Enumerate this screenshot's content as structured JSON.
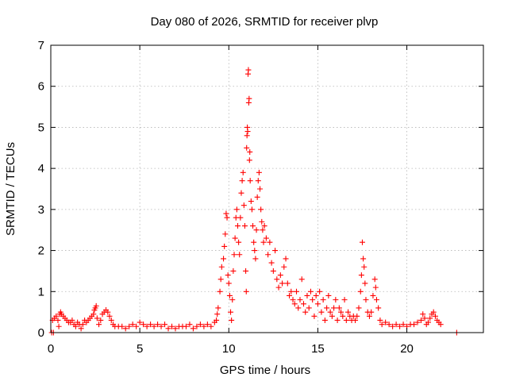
{
  "chart_data": {
    "type": "scatter",
    "title": "Day 080 of 2026, SRMTID for receiver plvp",
    "xlabel": "GPS time / hours",
    "ylabel": "SRMTID / TECUs",
    "xlim": [
      0,
      24.3
    ],
    "ylim": [
      0,
      7
    ],
    "xticks": [
      0,
      5,
      10,
      15,
      20
    ],
    "yticks": [
      0,
      1,
      2,
      3,
      4,
      5,
      6,
      7
    ],
    "grid": true,
    "marker": "+",
    "series": [
      {
        "name": "plvp",
        "color": "#ff0000",
        "points": [
          [
            0.05,
            0.0
          ],
          [
            0.1,
            0.3
          ],
          [
            0.15,
            0.0
          ],
          [
            0.2,
            0.35
          ],
          [
            0.3,
            0.4
          ],
          [
            0.4,
            0.3
          ],
          [
            0.45,
            0.15
          ],
          [
            0.5,
            0.45
          ],
          [
            0.55,
            0.5
          ],
          [
            0.6,
            0.45
          ],
          [
            0.7,
            0.4
          ],
          [
            0.8,
            0.35
          ],
          [
            0.9,
            0.3
          ],
          [
            1.0,
            0.25
          ],
          [
            1.1,
            0.25
          ],
          [
            1.2,
            0.3
          ],
          [
            1.3,
            0.2
          ],
          [
            1.4,
            0.15
          ],
          [
            1.5,
            0.25
          ],
          [
            1.6,
            0.2
          ],
          [
            1.7,
            0.1
          ],
          [
            1.8,
            0.2
          ],
          [
            1.9,
            0.3
          ],
          [
            2.0,
            0.25
          ],
          [
            2.1,
            0.3
          ],
          [
            2.2,
            0.35
          ],
          [
            2.3,
            0.4
          ],
          [
            2.4,
            0.45
          ],
          [
            2.45,
            0.55
          ],
          [
            2.5,
            0.6
          ],
          [
            2.55,
            0.65
          ],
          [
            2.6,
            0.35
          ],
          [
            2.7,
            0.2
          ],
          [
            2.8,
            0.3
          ],
          [
            2.9,
            0.45
          ],
          [
            3.0,
            0.5
          ],
          [
            3.1,
            0.55
          ],
          [
            3.2,
            0.5
          ],
          [
            3.3,
            0.4
          ],
          [
            3.4,
            0.3
          ],
          [
            3.5,
            0.2
          ],
          [
            3.6,
            0.15
          ],
          [
            3.8,
            0.15
          ],
          [
            4.0,
            0.15
          ],
          [
            4.2,
            0.1
          ],
          [
            4.4,
            0.15
          ],
          [
            4.6,
            0.2
          ],
          [
            4.8,
            0.15
          ],
          [
            5.0,
            0.25
          ],
          [
            5.2,
            0.2
          ],
          [
            5.4,
            0.15
          ],
          [
            5.6,
            0.2
          ],
          [
            5.8,
            0.15
          ],
          [
            6.0,
            0.2
          ],
          [
            6.2,
            0.15
          ],
          [
            6.4,
            0.2
          ],
          [
            6.6,
            0.1
          ],
          [
            6.8,
            0.15
          ],
          [
            7.0,
            0.1
          ],
          [
            7.2,
            0.15
          ],
          [
            7.4,
            0.15
          ],
          [
            7.6,
            0.15
          ],
          [
            7.8,
            0.2
          ],
          [
            8.0,
            0.1
          ],
          [
            8.2,
            0.15
          ],
          [
            8.4,
            0.2
          ],
          [
            8.6,
            0.15
          ],
          [
            8.8,
            0.2
          ],
          [
            9.0,
            0.15
          ],
          [
            9.2,
            0.25
          ],
          [
            9.3,
            0.3
          ],
          [
            9.35,
            0.45
          ],
          [
            9.4,
            0.6
          ],
          [
            9.5,
            1.0
          ],
          [
            9.55,
            1.3
          ],
          [
            9.6,
            1.6
          ],
          [
            9.7,
            1.8
          ],
          [
            9.75,
            2.1
          ],
          [
            9.8,
            2.4
          ],
          [
            9.85,
            2.9
          ],
          [
            9.9,
            2.8
          ],
          [
            9.95,
            1.4
          ],
          [
            10.0,
            1.2
          ],
          [
            10.05,
            0.9
          ],
          [
            10.1,
            0.5
          ],
          [
            10.15,
            0.3
          ],
          [
            10.2,
            0.8
          ],
          [
            10.25,
            1.5
          ],
          [
            10.3,
            1.9
          ],
          [
            10.35,
            2.3
          ],
          [
            10.4,
            2.8
          ],
          [
            10.45,
            3.0
          ],
          [
            10.5,
            2.6
          ],
          [
            10.55,
            2.2
          ],
          [
            10.6,
            1.9
          ],
          [
            10.65,
            2.8
          ],
          [
            10.7,
            3.4
          ],
          [
            10.75,
            3.7
          ],
          [
            10.8,
            3.9
          ],
          [
            10.85,
            3.1
          ],
          [
            10.9,
            2.6
          ],
          [
            10.95,
            1.5
          ],
          [
            10.98,
            1.0
          ],
          [
            11.0,
            4.5
          ],
          [
            11.02,
            4.8
          ],
          [
            11.04,
            5.0
          ],
          [
            11.06,
            4.9
          ],
          [
            11.08,
            6.3
          ],
          [
            11.1,
            6.4
          ],
          [
            11.12,
            5.6
          ],
          [
            11.14,
            5.7
          ],
          [
            11.16,
            4.2
          ],
          [
            11.18,
            4.4
          ],
          [
            11.2,
            3.7
          ],
          [
            11.25,
            3.2
          ],
          [
            11.3,
            3.0
          ],
          [
            11.35,
            2.6
          ],
          [
            11.4,
            2.2
          ],
          [
            11.45,
            2.0
          ],
          [
            11.5,
            1.8
          ],
          [
            11.55,
            2.5
          ],
          [
            11.6,
            3.3
          ],
          [
            11.65,
            3.7
          ],
          [
            11.7,
            3.9
          ],
          [
            11.75,
            3.5
          ],
          [
            11.8,
            3.0
          ],
          [
            11.85,
            2.7
          ],
          [
            11.9,
            2.5
          ],
          [
            11.95,
            2.2
          ],
          [
            12.0,
            2.6
          ],
          [
            12.1,
            2.3
          ],
          [
            12.2,
            1.9
          ],
          [
            12.3,
            2.2
          ],
          [
            12.4,
            1.7
          ],
          [
            12.5,
            1.5
          ],
          [
            12.6,
            2.0
          ],
          [
            12.7,
            1.3
          ],
          [
            12.8,
            1.1
          ],
          [
            12.9,
            1.4
          ],
          [
            13.0,
            1.2
          ],
          [
            13.1,
            1.6
          ],
          [
            13.2,
            1.8
          ],
          [
            13.3,
            1.2
          ],
          [
            13.4,
            0.9
          ],
          [
            13.5,
            1.0
          ],
          [
            13.6,
            0.8
          ],
          [
            13.7,
            0.7
          ],
          [
            13.8,
            1.0
          ],
          [
            13.9,
            0.6
          ],
          [
            14.0,
            0.8
          ],
          [
            14.1,
            1.3
          ],
          [
            14.2,
            0.7
          ],
          [
            14.3,
            0.5
          ],
          [
            14.4,
            0.9
          ],
          [
            14.5,
            0.6
          ],
          [
            14.6,
            1.0
          ],
          [
            14.7,
            0.8
          ],
          [
            14.8,
            0.4
          ],
          [
            14.9,
            0.9
          ],
          [
            15.0,
            0.7
          ],
          [
            15.1,
            1.0
          ],
          [
            15.2,
            0.5
          ],
          [
            15.3,
            0.8
          ],
          [
            15.4,
            0.3
          ],
          [
            15.5,
            0.6
          ],
          [
            15.6,
            0.9
          ],
          [
            15.7,
            0.5
          ],
          [
            15.8,
            0.4
          ],
          [
            15.9,
            0.6
          ],
          [
            16.0,
            0.8
          ],
          [
            16.1,
            0.3
          ],
          [
            16.2,
            0.6
          ],
          [
            16.3,
            0.5
          ],
          [
            16.4,
            0.4
          ],
          [
            16.5,
            0.8
          ],
          [
            16.6,
            0.3
          ],
          [
            16.7,
            0.5
          ],
          [
            16.8,
            0.4
          ],
          [
            16.9,
            0.3
          ],
          [
            17.0,
            0.4
          ],
          [
            17.1,
            0.3
          ],
          [
            17.2,
            0.4
          ],
          [
            17.3,
            0.6
          ],
          [
            17.4,
            1.0
          ],
          [
            17.45,
            1.4
          ],
          [
            17.5,
            2.2
          ],
          [
            17.55,
            1.8
          ],
          [
            17.6,
            1.6
          ],
          [
            17.65,
            1.2
          ],
          [
            17.7,
            0.8
          ],
          [
            17.8,
            0.5
          ],
          [
            17.9,
            0.4
          ],
          [
            18.0,
            0.5
          ],
          [
            18.1,
            0.9
          ],
          [
            18.2,
            1.3
          ],
          [
            18.25,
            1.1
          ],
          [
            18.3,
            0.8
          ],
          [
            18.4,
            0.6
          ],
          [
            18.5,
            0.3
          ],
          [
            18.6,
            0.2
          ],
          [
            18.8,
            0.25
          ],
          [
            19.0,
            0.2
          ],
          [
            19.2,
            0.15
          ],
          [
            19.4,
            0.2
          ],
          [
            19.6,
            0.15
          ],
          [
            19.8,
            0.2
          ],
          [
            20.0,
            0.15
          ],
          [
            20.2,
            0.2
          ],
          [
            20.4,
            0.2
          ],
          [
            20.6,
            0.25
          ],
          [
            20.8,
            0.3
          ],
          [
            20.9,
            0.45
          ],
          [
            21.0,
            0.35
          ],
          [
            21.1,
            0.2
          ],
          [
            21.2,
            0.25
          ],
          [
            21.3,
            0.35
          ],
          [
            21.4,
            0.45
          ],
          [
            21.5,
            0.5
          ],
          [
            21.6,
            0.4
          ],
          [
            21.7,
            0.3
          ],
          [
            21.8,
            0.25
          ],
          [
            21.9,
            0.2
          ],
          [
            22.8,
            0.0
          ]
        ]
      }
    ]
  }
}
